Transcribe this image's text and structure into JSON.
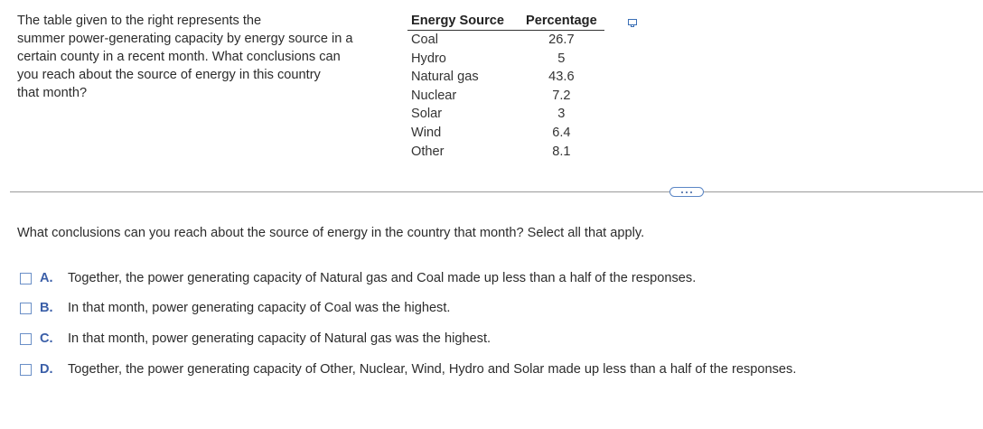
{
  "question": {
    "lines": [
      "The table given to the right represents the",
      "summer power-generating capacity by energy source in a",
      "certain county in a recent month. What conclusions can",
      "you reach about the source of energy in this country",
      "that month?"
    ]
  },
  "table": {
    "headers": [
      "Energy Source",
      "Percentage"
    ],
    "rows": [
      {
        "source": "Coal",
        "percentage": "26.7"
      },
      {
        "source": "Hydro",
        "percentage": "5"
      },
      {
        "source": "Natural gas",
        "percentage": "43.6"
      },
      {
        "source": "Nuclear",
        "percentage": "7.2"
      },
      {
        "source": "Solar",
        "percentage": "3"
      },
      {
        "source": "Wind",
        "percentage": "6.4"
      },
      {
        "source": "Other",
        "percentage": "8.1"
      }
    ]
  },
  "icons": {
    "copy": "copy-table-icon",
    "more": "ellipsis-icon"
  },
  "colors": {
    "accent": "#3b5fa8",
    "checkbox_border": "#6a8fc7"
  },
  "prompt": "What conclusions can you reach about the source of energy in the country that month? Select all that apply.",
  "options": [
    {
      "letter": "A.",
      "text": "Together, the power generating capacity of Natural gas and Coal made up less than a half of the responses."
    },
    {
      "letter": "B.",
      "text": "In that month, power generating capacity of Coal was the highest."
    },
    {
      "letter": "C.",
      "text": "In that month, power generating capacity of Natural gas was the highest."
    },
    {
      "letter": "D.",
      "text": "Together, the power generating capacity of Other, Nuclear, Wind, Hydro and Solar made up less than a half of the responses."
    }
  ]
}
